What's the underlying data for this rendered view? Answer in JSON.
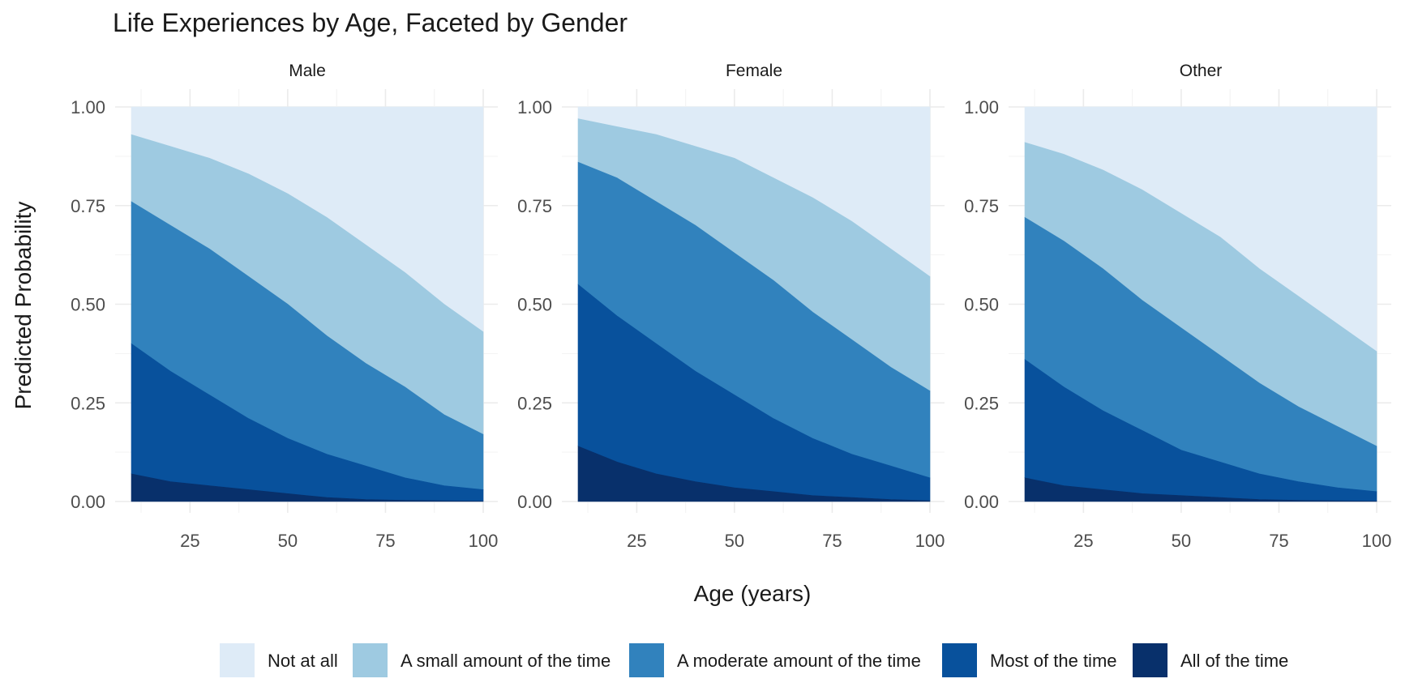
{
  "chart_data": {
    "type": "area",
    "stacked": true,
    "title": "Life Experiences by Age, Faceted by Gender",
    "xlabel": "Age (years)",
    "ylabel": "Predicted Probability",
    "xlim": [
      10,
      100
    ],
    "ylim": [
      0,
      1
    ],
    "x_ticks": [
      25,
      50,
      75,
      100
    ],
    "x_tick_labels": [
      "25",
      "50",
      "75",
      "100"
    ],
    "y_ticks": [
      0,
      0.25,
      0.5,
      0.75,
      1
    ],
    "y_tick_labels": [
      "0.00",
      "0.25",
      "0.50",
      "0.75",
      "1.00"
    ],
    "grid": true,
    "legend_position": "bottom",
    "x": [
      10,
      20,
      30,
      40,
      50,
      60,
      70,
      80,
      90,
      100
    ],
    "categories": [
      {
        "name": "Not at all",
        "color": "#deebf7"
      },
      {
        "name": "A small amount of the time",
        "color": "#9ecae1"
      },
      {
        "name": "A moderate amount of the time",
        "color": "#3182bd"
      },
      {
        "name": "Most of the time",
        "color": "#08519c"
      },
      {
        "name": "All of the time",
        "color": "#08306b"
      }
    ],
    "facets": [
      {
        "label": "Male",
        "cumulative_boundaries": [
          [
            0.93,
            0.9,
            0.87,
            0.83,
            0.78,
            0.72,
            0.65,
            0.58,
            0.5,
            0.43
          ],
          [
            0.76,
            0.7,
            0.64,
            0.57,
            0.5,
            0.42,
            0.35,
            0.29,
            0.22,
            0.17
          ],
          [
            0.4,
            0.33,
            0.27,
            0.21,
            0.16,
            0.12,
            0.09,
            0.06,
            0.04,
            0.03
          ],
          [
            0.07,
            0.05,
            0.04,
            0.03,
            0.02,
            0.01,
            0.005,
            0.003,
            0.002,
            0.001
          ]
        ]
      },
      {
        "label": "Female",
        "cumulative_boundaries": [
          [
            0.97,
            0.95,
            0.93,
            0.9,
            0.87,
            0.82,
            0.77,
            0.71,
            0.64,
            0.57
          ],
          [
            0.86,
            0.82,
            0.76,
            0.7,
            0.63,
            0.56,
            0.48,
            0.41,
            0.34,
            0.28
          ],
          [
            0.55,
            0.47,
            0.4,
            0.33,
            0.27,
            0.21,
            0.16,
            0.12,
            0.09,
            0.06
          ],
          [
            0.14,
            0.1,
            0.07,
            0.05,
            0.035,
            0.025,
            0.015,
            0.01,
            0.005,
            0.002
          ]
        ]
      },
      {
        "label": "Other",
        "cumulative_boundaries": [
          [
            0.91,
            0.88,
            0.84,
            0.79,
            0.73,
            0.67,
            0.59,
            0.52,
            0.45,
            0.38
          ],
          [
            0.72,
            0.66,
            0.59,
            0.51,
            0.44,
            0.37,
            0.3,
            0.24,
            0.19,
            0.14
          ],
          [
            0.36,
            0.29,
            0.23,
            0.18,
            0.13,
            0.1,
            0.07,
            0.05,
            0.035,
            0.025
          ],
          [
            0.06,
            0.04,
            0.03,
            0.02,
            0.015,
            0.01,
            0.005,
            0.003,
            0.002,
            0.001
          ]
        ]
      }
    ]
  }
}
